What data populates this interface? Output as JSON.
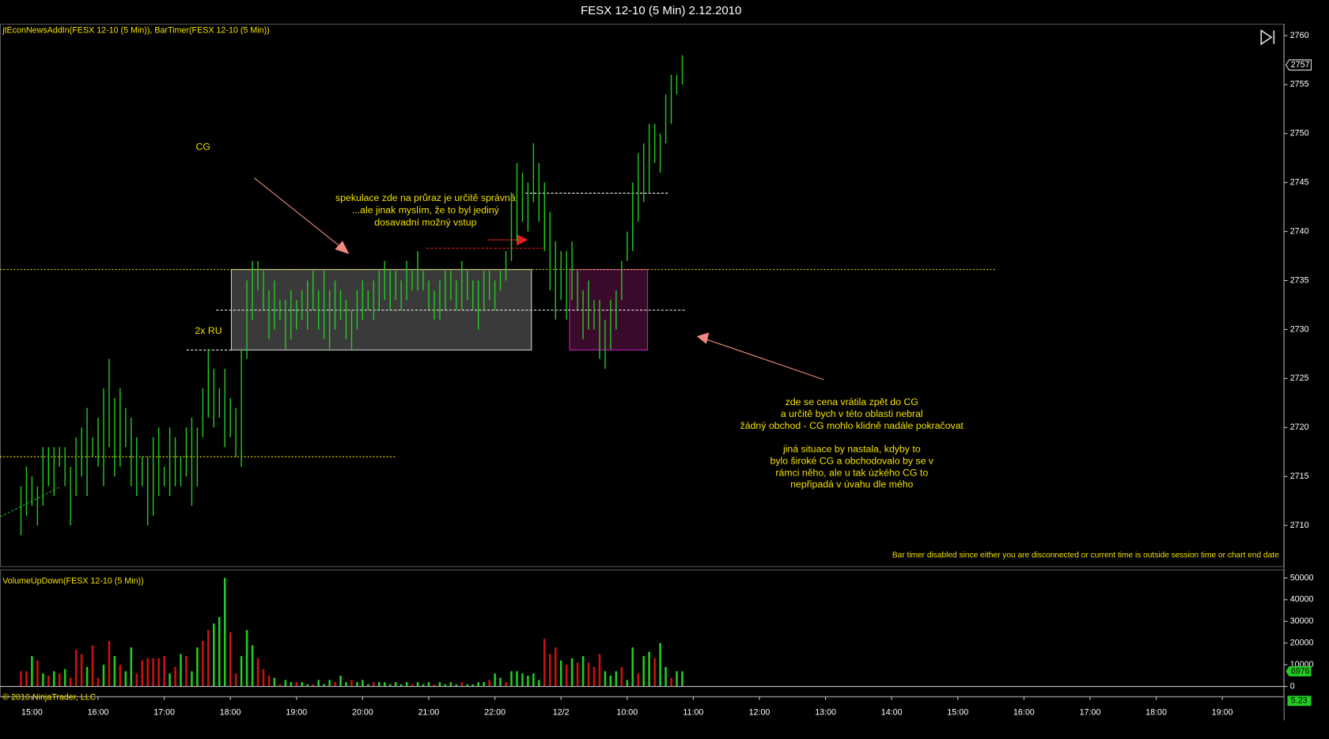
{
  "chart_data": {
    "type": "ohlc",
    "title": "FESX 12-10 (5 Min)  2.12.2010",
    "indicator_label": "jtEconNewsAddIn(FESX 12-10 (5 Min)), BarTimer(FESX 12-10 (5 Min))",
    "volume_label": "VolumeUpDown(FESX 12-10 (5 Min))",
    "copyright": "© 2010 NinjaTrader, LLC",
    "bar_timer_message": "Bar timer disabled since either you are disconnected or current time is outside session time or chart end date",
    "annotations": {
      "cg": "CG",
      "ru": "2x RU",
      "speculation": [
        "spekulace zde na průraz je určitě správná",
        "...ale jinak myslím, že to byl jediný",
        "dosavadní možný vstup"
      ],
      "comment": [
        "zde se cena vrátila zpět do CG",
        "a určitě bych v této oblasti nebral",
        "žádný obchod - CG mohlo klidně nadále pokračovat",
        "",
        "jiná situace by nastala, kdyby to",
        "bylo široké CG a obchodovalo by se v",
        "rámci něho, ale u tak úzkého CG to",
        "nepřipadá v úvahu dle mého"
      ]
    },
    "color": "#22cc22",
    "low": [
      2709,
      2711,
      2712,
      2710,
      2712,
      2714,
      2713,
      2716,
      2714,
      2710,
      2713,
      2715,
      2713,
      2717,
      2716,
      2714,
      2718,
      2715,
      2716,
      2718,
      2714,
      2713,
      2714,
      2710,
      2711,
      2713,
      2714,
      2713,
      2714,
      2714,
      2715,
      2712,
      2714,
      2719,
      2721,
      2720,
      2721,
      2718,
      2719,
      2717,
      2716,
      2727,
      2731,
      2734,
      2732,
      2729,
      2730,
      2731,
      2728,
      2729,
      2730,
      2731,
      2730,
      2732,
      2730,
      2729,
      2728,
      2730,
      2731,
      2729,
      2728,
      2730,
      2731,
      2732,
      2731,
      2732,
      2733,
      2732,
      2733,
      2732,
      2733,
      2734,
      2734,
      2734,
      2732,
      2731,
      2731,
      2732,
      2733,
      2732,
      2732,
      2733,
      2732,
      2730,
      2732,
      2733,
      2732,
      2734,
      2735,
      2737,
      2739,
      2741,
      2740,
      2743,
      2741,
      2738,
      2734,
      2731,
      2733,
      2731,
      2733,
      2732,
      2729,
      2730,
      2730,
      2727,
      2726,
      2728,
      2730,
      2733,
      2737,
      2738,
      2741,
      2743,
      2744,
      2747,
      2746,
      2749,
      2751,
      2754,
      2755
    ],
    "high": [
      2714,
      2716,
      2715,
      2714,
      2718,
      2718,
      2718,
      2718,
      2718,
      2716,
      2719,
      2720,
      2722,
      2719,
      2721,
      2724,
      2727,
      2723,
      2724,
      2722,
      2721,
      2719,
      2717,
      2717,
      2719,
      2720,
      2716,
      2720,
      2719,
      2717,
      2720,
      2721,
      2720,
      2724,
      2728,
      2726,
      2724,
      2726,
      2723,
      2722,
      2728,
      2735,
      2737,
      2737,
      2736,
      2734,
      2735,
      2733,
      2733,
      2734,
      2733,
      2734,
      2735,
      2736,
      2734,
      2736,
      2734,
      2735,
      2734,
      2733,
      2732,
      2734,
      2735,
      2734,
      2735,
      2736,
      2737,
      2736,
      2736,
      2735,
      2737,
      2736,
      2738,
      2736,
      2735,
      2734,
      2735,
      2736,
      2736,
      2735,
      2737,
      2736,
      2735,
      2735,
      2736,
      2736,
      2735,
      2736,
      2738,
      2744,
      2747,
      2746,
      2745,
      2749,
      2747,
      2745,
      2742,
      2739,
      2738,
      2738,
      2739,
      2736,
      2734,
      2735,
      2733,
      2733,
      2731,
      2733,
      2734,
      2737,
      2740,
      2745,
      2748,
      2749,
      2751,
      2751,
      2750,
      2754,
      2756,
      2756,
      2758
    ],
    "volume": [
      7000,
      7000,
      14000,
      12000,
      6000,
      5000,
      7000,
      6000,
      8000,
      4000,
      17000,
      15000,
      9000,
      19000,
      4000,
      10000,
      21000,
      14000,
      10000,
      7000,
      18000,
      6000,
      12000,
      13000,
      13000,
      13000,
      14000,
      6000,
      9000,
      15000,
      14000,
      7000,
      18000,
      21000,
      26000,
      29000,
      32000,
      50000,
      25000,
      6000,
      14000,
      26000,
      19000,
      13000,
      8000,
      5000,
      4000,
      1000,
      3000,
      2000,
      2000,
      2000,
      1000,
      1000,
      3000,
      1000,
      3000,
      2000,
      5000,
      2000,
      3000,
      2000,
      3000,
      1000,
      2000,
      2000,
      2000,
      1000,
      2000,
      1000,
      2000,
      1000,
      2000,
      1000,
      2000,
      1000,
      2000,
      1000,
      2000,
      1000,
      2000,
      1000,
      1000,
      2000,
      2000,
      3000,
      6000,
      4000,
      2000,
      7000,
      7000,
      6000,
      5000,
      6000,
      3000,
      22000,
      15000,
      18000,
      12000,
      10000,
      13000,
      11000,
      14000,
      11000,
      9000,
      15000,
      7000,
      5000,
      7000,
      9000,
      3000,
      18000,
      6000,
      14000,
      16000,
      13000,
      20000,
      9000,
      4000,
      7000,
      6976
    ],
    "volume_up": [
      false,
      false,
      true,
      false,
      true,
      false,
      true,
      false,
      true,
      false,
      false,
      false,
      true,
      false,
      false,
      true,
      false,
      true,
      false,
      true,
      true,
      false,
      false,
      false,
      false,
      false,
      false,
      true,
      false,
      true,
      false,
      true,
      true,
      false,
      false,
      true,
      true,
      true,
      false,
      false,
      true,
      true,
      true,
      false,
      false,
      false,
      true,
      false,
      true,
      true,
      false,
      true,
      true,
      false,
      true,
      true,
      true,
      false,
      true,
      true,
      false,
      true,
      true,
      true,
      false,
      true,
      true,
      true,
      true,
      true,
      true,
      false,
      true,
      true,
      true,
      false,
      true,
      true,
      true,
      true,
      false,
      true,
      true,
      true,
      true,
      false,
      true,
      true,
      false,
      true,
      true,
      true,
      true,
      true,
      true,
      false,
      false,
      false,
      true,
      false,
      true,
      false,
      true,
      false,
      false,
      false,
      true,
      true,
      true,
      false,
      true,
      true,
      false,
      true,
      true,
      false,
      true,
      true,
      false,
      true,
      true
    ],
    "up_color": "#22cc22",
    "down_color": "#cc1111",
    "last_price": 2757,
    "timer_value": "5.23",
    "xlim": [
      -3.8,
      229.2
    ],
    "xticks": [
      {
        "value": 2,
        "label": "15:00"
      },
      {
        "value": 14,
        "label": "16:00"
      },
      {
        "value": 26,
        "label": "17:00"
      },
      {
        "value": 38,
        "label": "18:00"
      },
      {
        "value": 50,
        "label": "19:00"
      },
      {
        "value": 62,
        "label": "20:00"
      },
      {
        "value": 74,
        "label": "21:00"
      },
      {
        "value": 86,
        "label": "22:00"
      },
      {
        "value": 98,
        "label": "12/2"
      },
      {
        "value": 110,
        "label": "10:00"
      },
      {
        "value": 122,
        "label": "11:00"
      },
      {
        "value": 134,
        "label": "12:00"
      },
      {
        "value": 146,
        "label": "13:00"
      },
      {
        "value": 158,
        "label": "14:00"
      },
      {
        "value": 170,
        "label": "15:00"
      },
      {
        "value": 182,
        "label": "16:00"
      },
      {
        "value": 194,
        "label": "17:00"
      },
      {
        "value": 206,
        "label": "18:00"
      },
      {
        "value": 218,
        "label": "19:00"
      }
    ],
    "ylim": [
      2705.85,
      2761.21
    ],
    "yticks": [
      2710,
      2715,
      2720,
      2725,
      2730,
      2735,
      2740,
      2745,
      2750,
      2755,
      2760
    ],
    "y2lim": [
      -4688,
      53906
    ],
    "y2ticks": [
      0,
      10000,
      20000,
      30000,
      40000,
      50000
    ]
  }
}
